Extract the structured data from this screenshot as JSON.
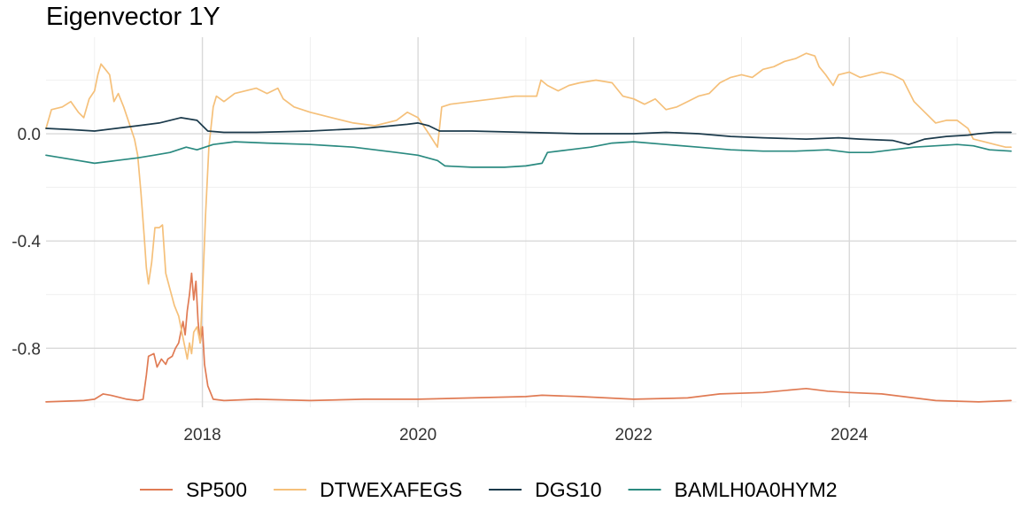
{
  "chart_data": {
    "type": "line",
    "title": "Eigenvector 1Y",
    "xlabel": "",
    "ylabel": "",
    "xlim": [
      2016.55,
      2025.55
    ],
    "ylim": [
      -1.02,
      0.36
    ],
    "x_ticks": [
      2018,
      2020,
      2022,
      2024
    ],
    "x_tick_labels": [
      "2018",
      "2020",
      "2022",
      "2024"
    ],
    "y_ticks": [
      0.0,
      -0.4,
      -0.8
    ],
    "y_tick_labels": [
      "0.0",
      "-0.4",
      "-0.8"
    ],
    "grid": true,
    "legend_position": "bottom",
    "series": [
      {
        "name": "SP500",
        "color": "#E07B54",
        "points": [
          [
            2016.55,
            -1.0
          ],
          [
            2016.9,
            -0.995
          ],
          [
            2017.0,
            -0.99
          ],
          [
            2017.08,
            -0.97
          ],
          [
            2017.15,
            -0.975
          ],
          [
            2017.3,
            -0.99
          ],
          [
            2017.4,
            -0.995
          ],
          [
            2017.45,
            -0.99
          ],
          [
            2017.48,
            -0.9
          ],
          [
            2017.5,
            -0.83
          ],
          [
            2017.55,
            -0.82
          ],
          [
            2017.58,
            -0.87
          ],
          [
            2017.62,
            -0.84
          ],
          [
            2017.66,
            -0.86
          ],
          [
            2017.68,
            -0.84
          ],
          [
            2017.72,
            -0.83
          ],
          [
            2017.75,
            -0.8
          ],
          [
            2017.78,
            -0.78
          ],
          [
            2017.8,
            -0.74
          ],
          [
            2017.82,
            -0.7
          ],
          [
            2017.84,
            -0.75
          ],
          [
            2017.86,
            -0.66
          ],
          [
            2017.88,
            -0.6
          ],
          [
            2017.9,
            -0.52
          ],
          [
            2017.92,
            -0.62
          ],
          [
            2017.94,
            -0.55
          ],
          [
            2017.96,
            -0.7
          ],
          [
            2017.98,
            -0.78
          ],
          [
            2018.0,
            -0.72
          ],
          [
            2018.02,
            -0.86
          ],
          [
            2018.05,
            -0.94
          ],
          [
            2018.1,
            -0.99
          ],
          [
            2018.2,
            -0.995
          ],
          [
            2018.5,
            -0.99
          ],
          [
            2019.0,
            -0.995
          ],
          [
            2019.5,
            -0.99
          ],
          [
            2020.0,
            -0.99
          ],
          [
            2020.5,
            -0.985
          ],
          [
            2021.0,
            -0.98
          ],
          [
            2021.15,
            -0.975
          ],
          [
            2021.5,
            -0.98
          ],
          [
            2022.0,
            -0.99
          ],
          [
            2022.5,
            -0.985
          ],
          [
            2022.8,
            -0.97
          ],
          [
            2023.2,
            -0.965
          ],
          [
            2023.6,
            -0.95
          ],
          [
            2023.8,
            -0.96
          ],
          [
            2024.0,
            -0.965
          ],
          [
            2024.3,
            -0.97
          ],
          [
            2024.5,
            -0.98
          ],
          [
            2024.8,
            -0.995
          ],
          [
            2025.2,
            -1.0
          ],
          [
            2025.5,
            -0.995
          ]
        ]
      },
      {
        "name": "DTWEXAFEGS",
        "color": "#F5C07A",
        "points": [
          [
            2016.55,
            0.02
          ],
          [
            2016.6,
            0.09
          ],
          [
            2016.7,
            0.1
          ],
          [
            2016.78,
            0.12
          ],
          [
            2016.85,
            0.08
          ],
          [
            2016.9,
            0.06
          ],
          [
            2016.95,
            0.13
          ],
          [
            2017.0,
            0.16
          ],
          [
            2017.03,
            0.22
          ],
          [
            2017.06,
            0.26
          ],
          [
            2017.1,
            0.24
          ],
          [
            2017.14,
            0.22
          ],
          [
            2017.18,
            0.12
          ],
          [
            2017.22,
            0.15
          ],
          [
            2017.27,
            0.1
          ],
          [
            2017.32,
            0.04
          ],
          [
            2017.37,
            -0.02
          ],
          [
            2017.4,
            -0.08
          ],
          [
            2017.43,
            -0.22
          ],
          [
            2017.46,
            -0.38
          ],
          [
            2017.48,
            -0.5
          ],
          [
            2017.5,
            -0.56
          ],
          [
            2017.53,
            -0.48
          ],
          [
            2017.56,
            -0.35
          ],
          [
            2017.6,
            -0.35
          ],
          [
            2017.63,
            -0.34
          ],
          [
            2017.66,
            -0.52
          ],
          [
            2017.7,
            -0.58
          ],
          [
            2017.74,
            -0.64
          ],
          [
            2017.78,
            -0.68
          ],
          [
            2017.81,
            -0.74
          ],
          [
            2017.84,
            -0.8
          ],
          [
            2017.86,
            -0.84
          ],
          [
            2017.88,
            -0.78
          ],
          [
            2017.9,
            -0.82
          ],
          [
            2017.92,
            -0.74
          ],
          [
            2017.95,
            -0.72
          ],
          [
            2017.98,
            -0.78
          ],
          [
            2018.0,
            -0.6
          ],
          [
            2018.03,
            -0.3
          ],
          [
            2018.06,
            -0.05
          ],
          [
            2018.1,
            0.1
          ],
          [
            2018.13,
            0.14
          ],
          [
            2018.2,
            0.12
          ],
          [
            2018.3,
            0.15
          ],
          [
            2018.4,
            0.16
          ],
          [
            2018.5,
            0.17
          ],
          [
            2018.6,
            0.15
          ],
          [
            2018.7,
            0.17
          ],
          [
            2018.75,
            0.13
          ],
          [
            2018.85,
            0.1
          ],
          [
            2019.0,
            0.08
          ],
          [
            2019.2,
            0.06
          ],
          [
            2019.4,
            0.04
          ],
          [
            2019.6,
            0.03
          ],
          [
            2019.8,
            0.05
          ],
          [
            2019.9,
            0.08
          ],
          [
            2020.0,
            0.06
          ],
          [
            2020.1,
            0.0
          ],
          [
            2020.18,
            -0.05
          ],
          [
            2020.22,
            0.1
          ],
          [
            2020.3,
            0.11
          ],
          [
            2020.5,
            0.12
          ],
          [
            2020.7,
            0.13
          ],
          [
            2020.9,
            0.14
          ],
          [
            2021.1,
            0.14
          ],
          [
            2021.14,
            0.2
          ],
          [
            2021.2,
            0.18
          ],
          [
            2021.3,
            0.16
          ],
          [
            2021.4,
            0.18
          ],
          [
            2021.5,
            0.19
          ],
          [
            2021.65,
            0.2
          ],
          [
            2021.8,
            0.19
          ],
          [
            2021.9,
            0.14
          ],
          [
            2022.0,
            0.13
          ],
          [
            2022.1,
            0.11
          ],
          [
            2022.2,
            0.13
          ],
          [
            2022.3,
            0.09
          ],
          [
            2022.4,
            0.1
          ],
          [
            2022.5,
            0.12
          ],
          [
            2022.6,
            0.14
          ],
          [
            2022.7,
            0.15
          ],
          [
            2022.8,
            0.19
          ],
          [
            2022.9,
            0.21
          ],
          [
            2023.0,
            0.22
          ],
          [
            2023.1,
            0.21
          ],
          [
            2023.2,
            0.24
          ],
          [
            2023.3,
            0.25
          ],
          [
            2023.4,
            0.27
          ],
          [
            2023.5,
            0.28
          ],
          [
            2023.6,
            0.3
          ],
          [
            2023.68,
            0.29
          ],
          [
            2023.72,
            0.25
          ],
          [
            2023.78,
            0.22
          ],
          [
            2023.85,
            0.18
          ],
          [
            2023.9,
            0.22
          ],
          [
            2024.0,
            0.23
          ],
          [
            2024.1,
            0.21
          ],
          [
            2024.2,
            0.22
          ],
          [
            2024.3,
            0.23
          ],
          [
            2024.4,
            0.22
          ],
          [
            2024.5,
            0.2
          ],
          [
            2024.6,
            0.12
          ],
          [
            2024.7,
            0.08
          ],
          [
            2024.8,
            0.04
          ],
          [
            2024.9,
            0.05
          ],
          [
            2025.0,
            0.05
          ],
          [
            2025.1,
            0.02
          ],
          [
            2025.15,
            -0.02
          ],
          [
            2025.25,
            -0.03
          ],
          [
            2025.35,
            -0.04
          ],
          [
            2025.45,
            -0.05
          ],
          [
            2025.5,
            -0.05
          ]
        ]
      },
      {
        "name": "DGS10",
        "color": "#1B3A4B",
        "points": [
          [
            2016.55,
            0.02
          ],
          [
            2016.8,
            0.015
          ],
          [
            2017.0,
            0.01
          ],
          [
            2017.2,
            0.02
          ],
          [
            2017.4,
            0.03
          ],
          [
            2017.6,
            0.04
          ],
          [
            2017.8,
            0.06
          ],
          [
            2017.95,
            0.05
          ],
          [
            2018.05,
            0.01
          ],
          [
            2018.2,
            0.005
          ],
          [
            2018.5,
            0.005
          ],
          [
            2019.0,
            0.01
          ],
          [
            2019.5,
            0.02
          ],
          [
            2019.9,
            0.035
          ],
          [
            2020.0,
            0.04
          ],
          [
            2020.1,
            0.03
          ],
          [
            2020.2,
            0.01
          ],
          [
            2020.5,
            0.01
          ],
          [
            2021.0,
            0.005
          ],
          [
            2021.5,
            0.0
          ],
          [
            2022.0,
            0.0
          ],
          [
            2022.3,
            0.005
          ],
          [
            2022.6,
            0.0
          ],
          [
            2022.9,
            -0.01
          ],
          [
            2023.2,
            -0.015
          ],
          [
            2023.6,
            -0.02
          ],
          [
            2023.9,
            -0.015
          ],
          [
            2024.1,
            -0.02
          ],
          [
            2024.4,
            -0.025
          ],
          [
            2024.55,
            -0.04
          ],
          [
            2024.7,
            -0.02
          ],
          [
            2024.9,
            -0.01
          ],
          [
            2025.1,
            -0.005
          ],
          [
            2025.2,
            0.0
          ],
          [
            2025.35,
            0.005
          ],
          [
            2025.5,
            0.005
          ]
        ]
      },
      {
        "name": "BAMLH0A0HYM2",
        "color": "#2A8A80",
        "points": [
          [
            2016.55,
            -0.08
          ],
          [
            2016.7,
            -0.09
          ],
          [
            2016.85,
            -0.1
          ],
          [
            2017.0,
            -0.11
          ],
          [
            2017.2,
            -0.1
          ],
          [
            2017.4,
            -0.09
          ],
          [
            2017.55,
            -0.08
          ],
          [
            2017.7,
            -0.07
          ],
          [
            2017.85,
            -0.05
          ],
          [
            2017.95,
            -0.06
          ],
          [
            2018.1,
            -0.04
          ],
          [
            2018.3,
            -0.03
          ],
          [
            2018.6,
            -0.035
          ],
          [
            2019.0,
            -0.04
          ],
          [
            2019.4,
            -0.05
          ],
          [
            2019.8,
            -0.07
          ],
          [
            2020.0,
            -0.08
          ],
          [
            2020.18,
            -0.1
          ],
          [
            2020.25,
            -0.12
          ],
          [
            2020.5,
            -0.125
          ],
          [
            2020.8,
            -0.125
          ],
          [
            2021.0,
            -0.12
          ],
          [
            2021.15,
            -0.11
          ],
          [
            2021.2,
            -0.07
          ],
          [
            2021.4,
            -0.06
          ],
          [
            2021.6,
            -0.05
          ],
          [
            2021.8,
            -0.035
          ],
          [
            2022.0,
            -0.03
          ],
          [
            2022.3,
            -0.04
          ],
          [
            2022.6,
            -0.05
          ],
          [
            2022.9,
            -0.06
          ],
          [
            2023.2,
            -0.065
          ],
          [
            2023.5,
            -0.065
          ],
          [
            2023.8,
            -0.06
          ],
          [
            2024.0,
            -0.07
          ],
          [
            2024.2,
            -0.07
          ],
          [
            2024.4,
            -0.06
          ],
          [
            2024.6,
            -0.05
          ],
          [
            2024.8,
            -0.045
          ],
          [
            2025.0,
            -0.04
          ],
          [
            2025.15,
            -0.045
          ],
          [
            2025.3,
            -0.06
          ],
          [
            2025.5,
            -0.065
          ]
        ]
      }
    ]
  }
}
